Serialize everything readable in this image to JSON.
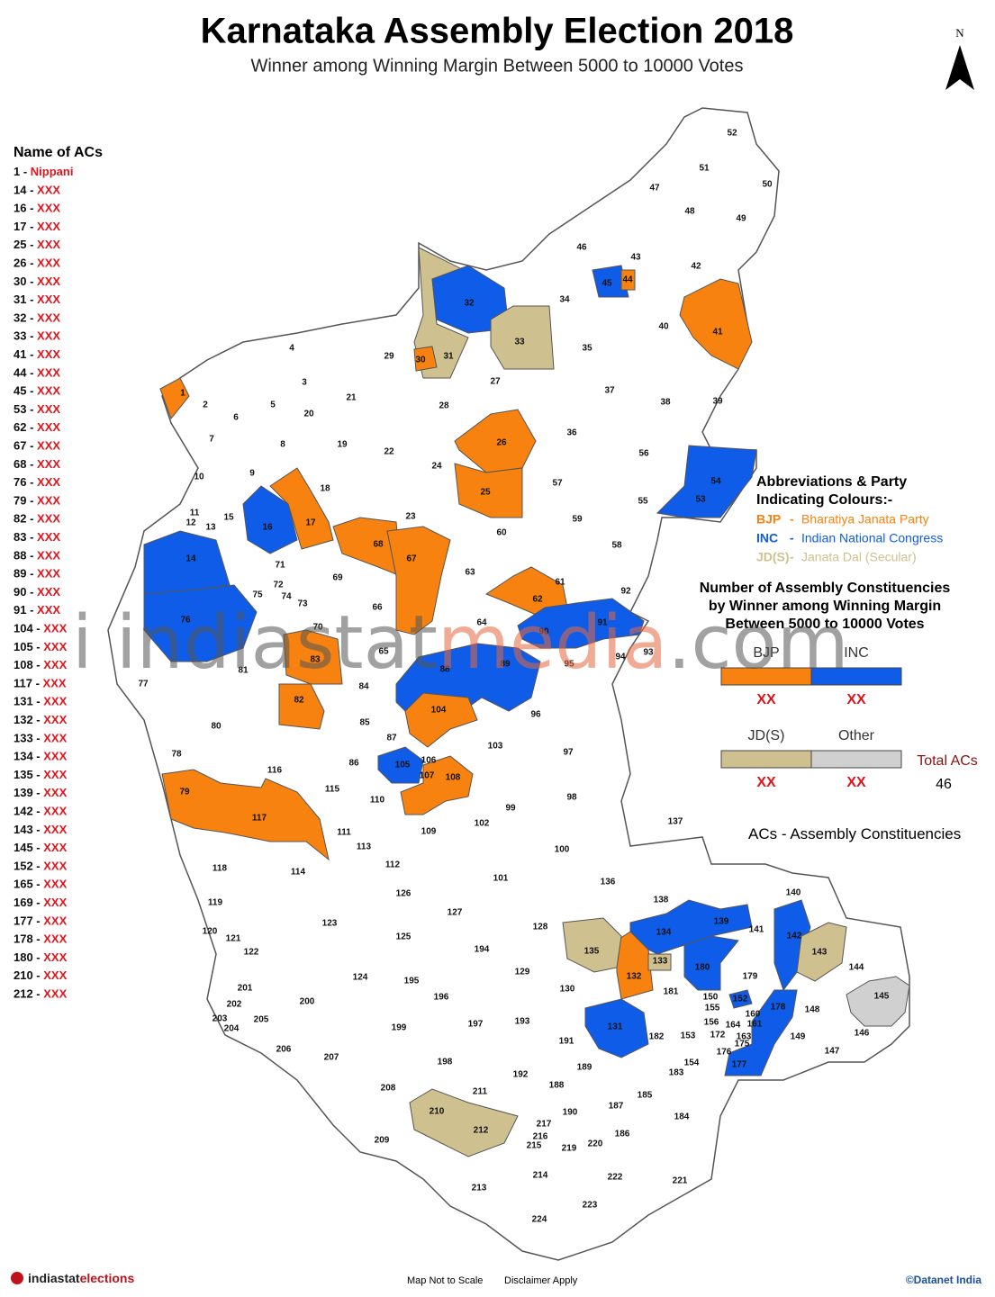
{
  "header": {
    "title": "Karnataka Assembly Election 2018",
    "subtitle": "Winner among Winning Margin Between 5000 to 10000 Votes",
    "north": "N"
  },
  "ac_list": {
    "heading": "Name of ACs",
    "items": [
      {
        "number": "1 -",
        "name": "Nippani"
      },
      {
        "number": "14 -",
        "name": "XXX"
      },
      {
        "number": "16 -",
        "name": "XXX"
      },
      {
        "number": "17 -",
        "name": "XXX"
      },
      {
        "number": "25 -",
        "name": "XXX"
      },
      {
        "number": "26 -",
        "name": "XXX"
      },
      {
        "number": "30 -",
        "name": "XXX"
      },
      {
        "number": "31 -",
        "name": "XXX"
      },
      {
        "number": "32 -",
        "name": "XXX"
      },
      {
        "number": "33 -",
        "name": "XXX"
      },
      {
        "number": "41 -",
        "name": "XXX"
      },
      {
        "number": "44 -",
        "name": "XXX"
      },
      {
        "number": "45 -",
        "name": "XXX"
      },
      {
        "number": "53 -",
        "name": "XXX"
      },
      {
        "number": "62 -",
        "name": "XXX"
      },
      {
        "number": "67 -",
        "name": "XXX"
      },
      {
        "number": "68 -",
        "name": "XXX"
      },
      {
        "number": "76 -",
        "name": "XXX"
      },
      {
        "number": "79 -",
        "name": "XXX"
      },
      {
        "number": "82 -",
        "name": "XXX"
      },
      {
        "number": "83 -",
        "name": "XXX"
      },
      {
        "number": "88 -",
        "name": "XXX"
      },
      {
        "number": "89 -",
        "name": "XXX"
      },
      {
        "number": "90 -",
        "name": "XXX"
      },
      {
        "number": "91 -",
        "name": "XXX"
      },
      {
        "number": "104 -",
        "name": "XXX"
      },
      {
        "number": "105 -",
        "name": "XXX"
      },
      {
        "number": "108 -",
        "name": "XXX"
      },
      {
        "number": "117 -",
        "name": "XXX"
      },
      {
        "number": "131 -",
        "name": "XXX"
      },
      {
        "number": "132 -",
        "name": "XXX"
      },
      {
        "number": "133 -",
        "name": "XXX"
      },
      {
        "number": "134 -",
        "name": "XXX"
      },
      {
        "number": "135 -",
        "name": "XXX"
      },
      {
        "number": "139 -",
        "name": "XXX"
      },
      {
        "number": "142 -",
        "name": "XXX"
      },
      {
        "number": "143 -",
        "name": "XXX"
      },
      {
        "number": "145 -",
        "name": "XXX"
      },
      {
        "number": "152 -",
        "name": "XXX"
      },
      {
        "number": "165 -",
        "name": "XXX"
      },
      {
        "number": "169 -",
        "name": "XXX"
      },
      {
        "number": "177 -",
        "name": "XXX"
      },
      {
        "number": "178 -",
        "name": "XXX"
      },
      {
        "number": "180 -",
        "name": "XXX"
      },
      {
        "number": "210 -",
        "name": "XXX"
      },
      {
        "number": "212 -",
        "name": "XXX"
      }
    ]
  },
  "map": {
    "labels": [
      "52",
      "51",
      "50",
      "47",
      "48",
      "49",
      "46",
      "43",
      "42",
      "45",
      "44",
      "34",
      "32",
      "40",
      "41",
      "33",
      "35",
      "4",
      "29",
      "31",
      "30",
      "3",
      "27",
      "37",
      "21",
      "2",
      "1",
      "5",
      "20",
      "28",
      "38",
      "39",
      "6",
      "36",
      "26",
      "7",
      "8",
      "19",
      "22",
      "56",
      "24",
      "9",
      "10",
      "18",
      "25",
      "57",
      "54",
      "53",
      "55",
      "23",
      "15",
      "11",
      "12",
      "13",
      "16",
      "17",
      "59",
      "60",
      "14",
      "71",
      "68",
      "67",
      "58",
      "63",
      "72",
      "74",
      "73",
      "69",
      "61",
      "62",
      "75",
      "92",
      "70",
      "66",
      "76",
      "64",
      "91",
      "90",
      "65",
      "81",
      "93",
      "94",
      "83",
      "88",
      "89",
      "95",
      "77",
      "84",
      "82",
      "104",
      "96",
      "80",
      "85",
      "78",
      "87",
      "103",
      "97",
      "86",
      "106",
      "105",
      "107",
      "108",
      "116",
      "79",
      "115",
      "110",
      "98",
      "117",
      "99",
      "102",
      "109",
      "111",
      "113",
      "137",
      "100",
      "118",
      "114",
      "112",
      "101",
      "136",
      "140",
      "126",
      "138",
      "119",
      "127",
      "128",
      "139",
      "141",
      "123",
      "134",
      "142",
      "120",
      "121",
      "135",
      "143",
      "125",
      "194",
      "122",
      "133",
      "180",
      "132",
      "129",
      "179",
      "144",
      "124",
      "195",
      "130",
      "181",
      "201",
      "145",
      "150",
      "152",
      "200",
      "196",
      "202",
      "155",
      "160",
      "148",
      "178",
      "203",
      "204",
      "205",
      "197",
      "193",
      "131",
      "156",
      "164",
      "161",
      "172",
      "146",
      "163",
      "175",
      "176",
      "199",
      "182",
      "153",
      "149",
      "191",
      "206",
      "207",
      "147",
      "154",
      "177",
      "198",
      "189",
      "183",
      "192",
      "208",
      "188",
      "211",
      "185",
      "210",
      "187",
      "190",
      "184",
      "212",
      "217",
      "216",
      "186",
      "209",
      "215",
      "219",
      "220",
      "214",
      "222",
      "221",
      "213",
      "223",
      "224"
    ]
  },
  "legend": {
    "heading": [
      "Abbreviations & Party",
      "Indicating Colours:-"
    ],
    "parties": [
      {
        "abbr": "BJP",
        "separator": "-",
        "name": "Bharatiya Janata Party",
        "color": "#f7820f"
      },
      {
        "abbr": "INC",
        "separator": "-",
        "name": "Indian National Congress",
        "color": "#0f5ce8"
      },
      {
        "abbr": "JD(S)",
        "separator": "-",
        "name": "Janata Dal (Secular)",
        "color": "#cfc08f"
      }
    ]
  },
  "summary": {
    "heading": [
      "Number of Assembly Constituencies",
      "by Winner among Winning Margin",
      "Between 5000 to 10000 Votes"
    ],
    "boxes": [
      {
        "party": "BJP",
        "color": "#f7820f",
        "count": "XX"
      },
      {
        "party": "INC",
        "color": "#0f5ce8",
        "count": "XX"
      },
      {
        "party": "JD(S)",
        "color": "#cfc08f",
        "count": "XX"
      },
      {
        "party": "Other",
        "color": "#d0d0d0",
        "count": "XX"
      }
    ],
    "total_label": "Total ACs",
    "total": 46
  },
  "note": {
    "abbr": "ACs",
    "separator": "-",
    "text": "Assembly Constituencies"
  },
  "watermark": [
    "i",
    "indiastat",
    "media",
    ".com"
  ],
  "footer": {
    "brand_a": "indiastat",
    "brand_b": "elections",
    "scale": "Map Not to Scale",
    "disclaimer": "Disclaimer Apply",
    "credit": "©Datanet India"
  }
}
